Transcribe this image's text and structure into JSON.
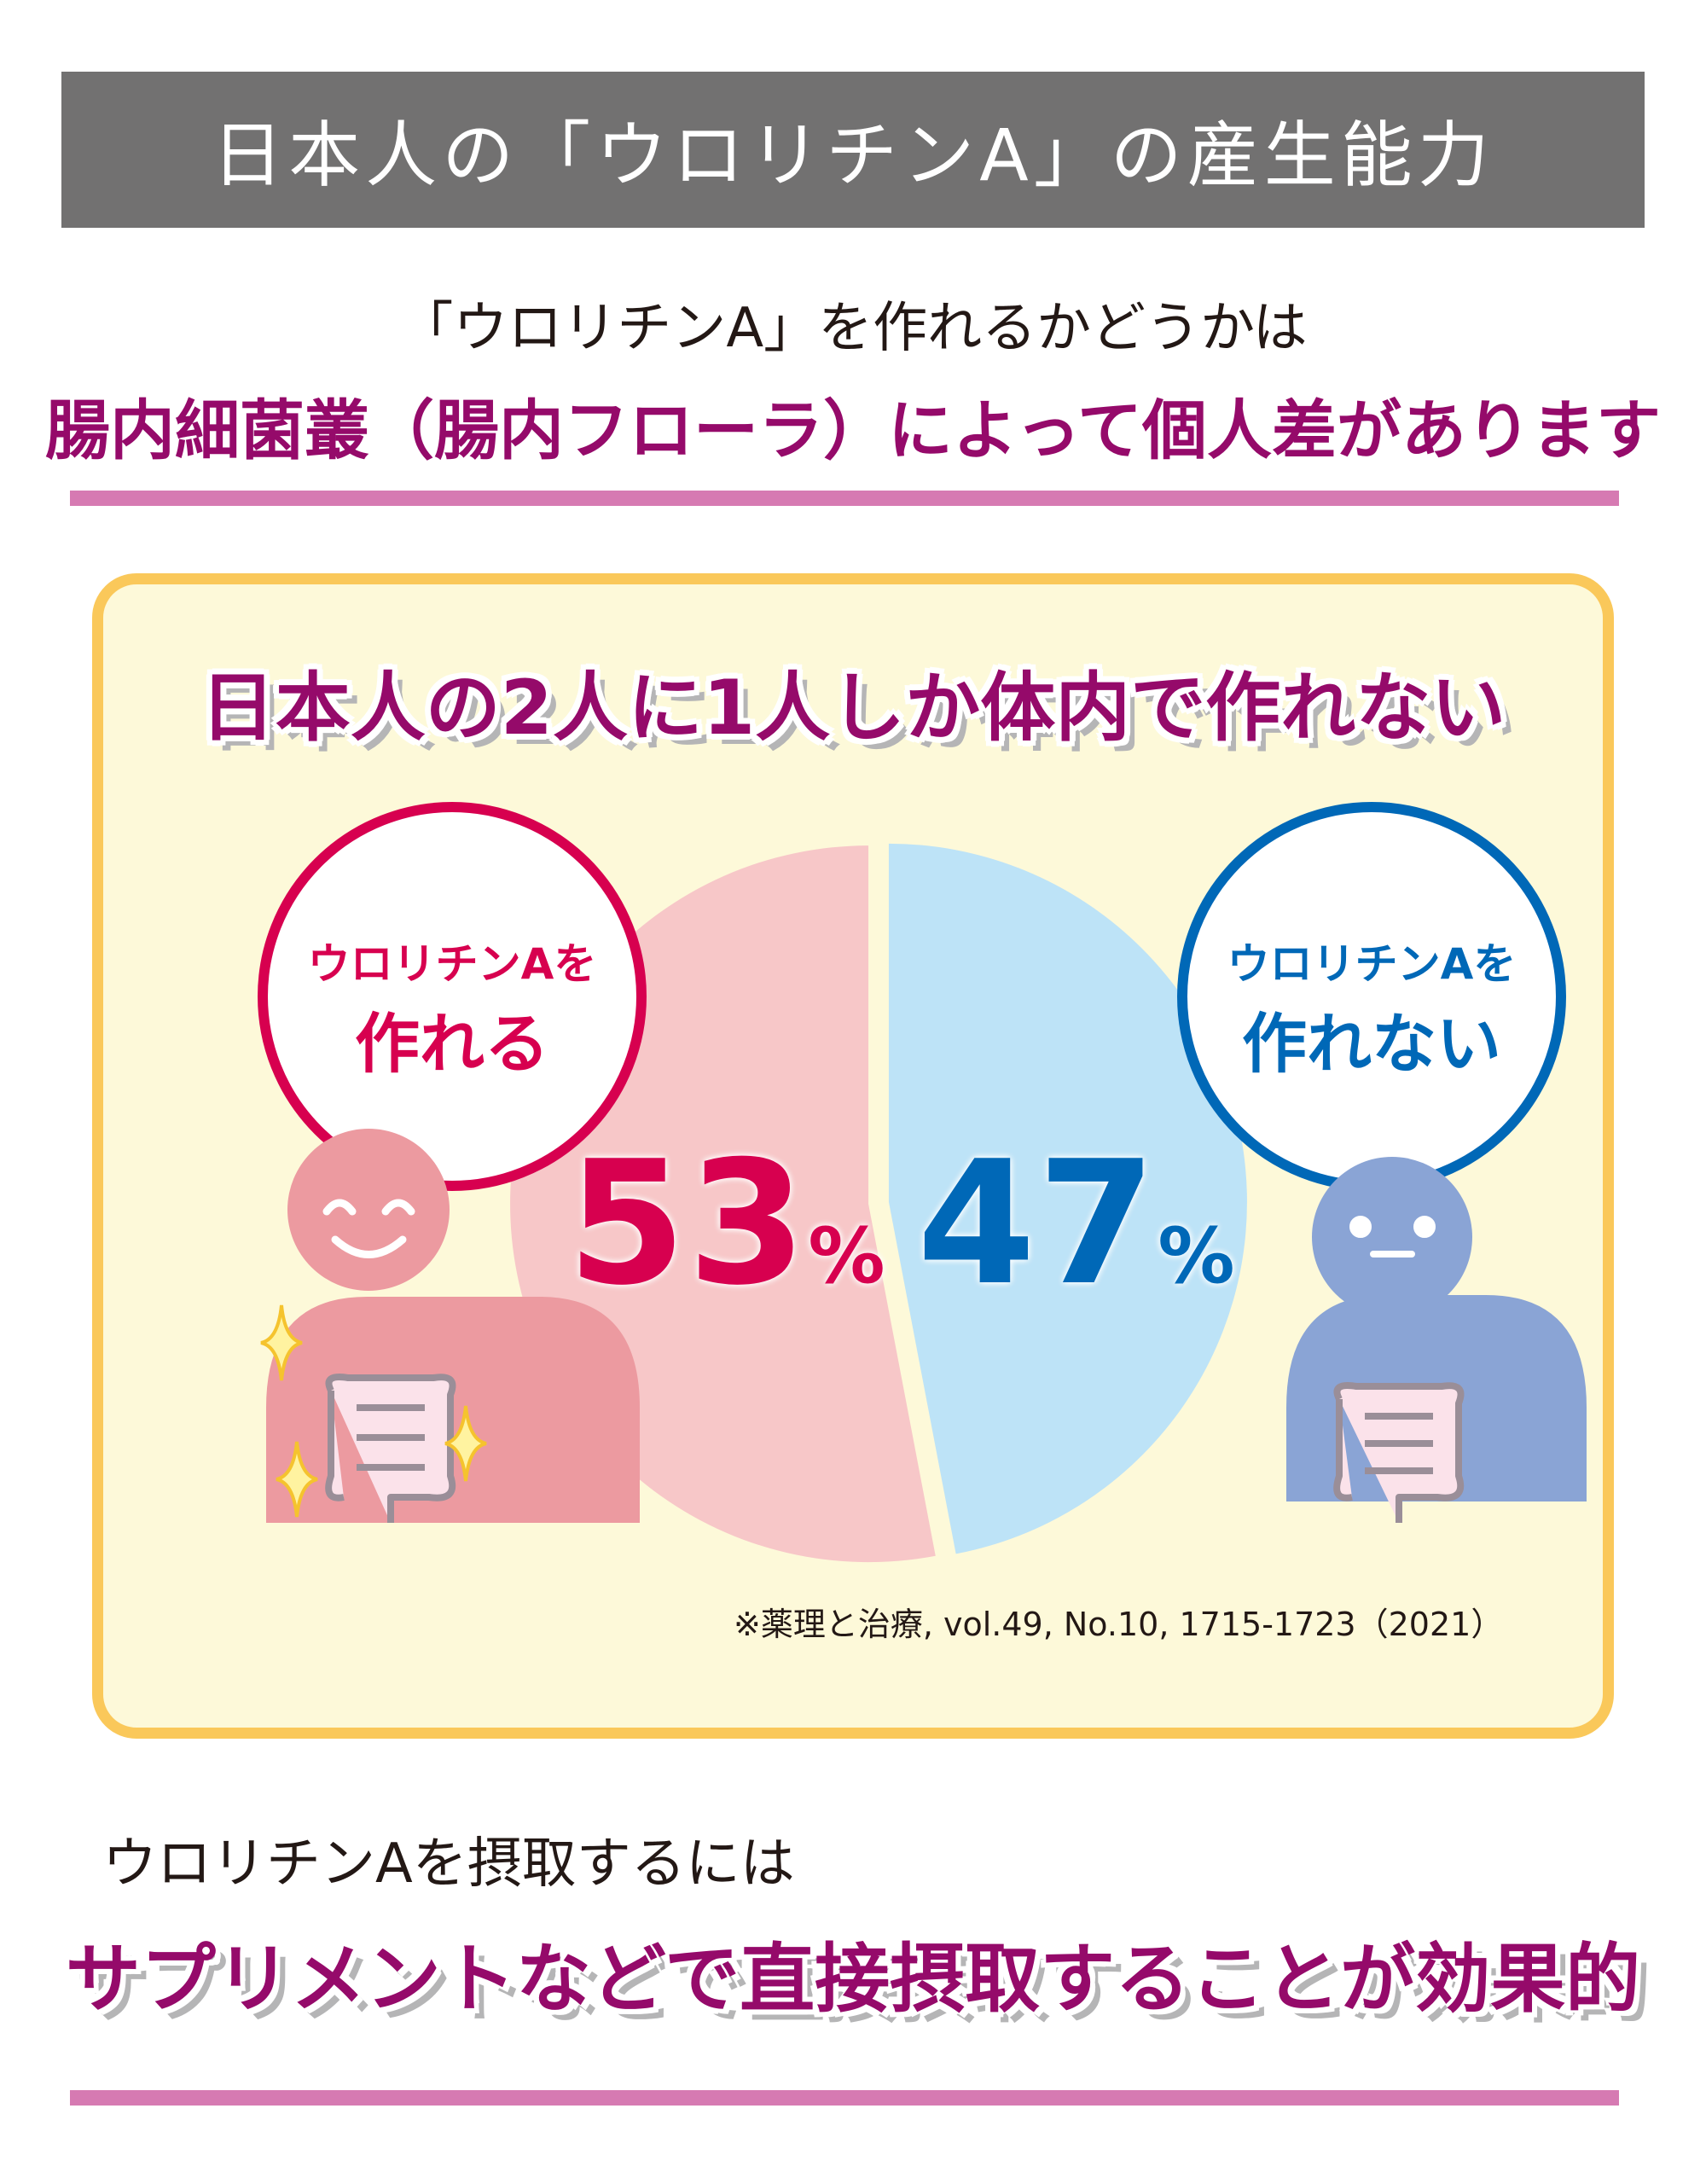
{
  "header": {
    "title": "日本人の「ウロリチンA」の産生能力"
  },
  "intro": {
    "line1": "「ウロリチンA」を作れるかどうかは",
    "headline": "腸内細菌叢（腸内フローラ）によって個人差があります"
  },
  "panel": {
    "heading": "日本人の2人に1人しか体内で作れない",
    "source_note": "※薬理と治療, vol.49, No.10, 1715-1723（2021）"
  },
  "chart_data": {
    "type": "pie",
    "title": "日本人の2人に1人しか体内で作れない",
    "slices": [
      {
        "label_line1": "ウロリチンAを",
        "label_line2": "作れる",
        "value": 53,
        "value_text": "53",
        "unit": "%",
        "fill": "#f7c7c8",
        "accent": "#d7004f"
      },
      {
        "label_line1": "ウロリチンAを",
        "label_line2": "作れない",
        "value": 47,
        "value_text": "47",
        "unit": "%",
        "fill": "#bde3f7",
        "accent": "#0068b7"
      }
    ]
  },
  "characters": {
    "producer": {
      "body": "#ec9aa0",
      "face_lines": "#ffffff"
    },
    "non_producer": {
      "body": "#8aa4d5",
      "face_lines": "#ffffff"
    },
    "sparkle": "#fff3a0",
    "sparkle_stroke": "#f5c32e",
    "intestine": "#fbe2ea",
    "intestine_stroke": "#9a8e98"
  },
  "footer": {
    "lead": "ウロリチンAを摂取するには",
    "headline": "サプリメントなどで直接摂取することが効果的"
  },
  "colors": {
    "title_bar": "#727171",
    "headline": "#950a6a",
    "underline": "#d67ab2",
    "panel_bg": "#fdf9d9",
    "panel_border": "#fac85a"
  }
}
